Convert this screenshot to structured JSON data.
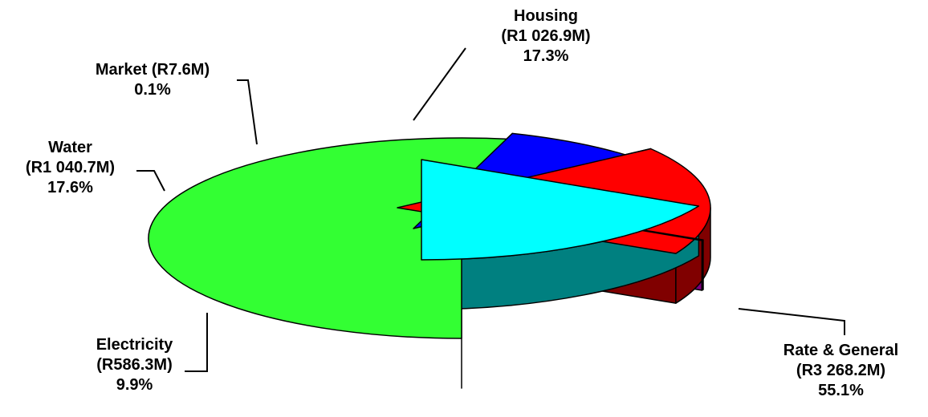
{
  "chart_data": {
    "type": "pie",
    "title": "",
    "slices": [
      {
        "key": "rate",
        "name": "Rate & General",
        "value": 3268.2,
        "value_label": "(R3 268.2M)",
        "percent_label": "55.1%",
        "top": "#33ff33",
        "side": "#009900"
      },
      {
        "key": "electricity",
        "name": "Electricity",
        "value": 586.3,
        "value_label": "(R586.3M)",
        "percent_label": "9.9%",
        "top": "#0000ff",
        "side": "#000080"
      },
      {
        "key": "water",
        "name": "Water",
        "value": 1040.7,
        "value_label": "(R1 040.7M)",
        "percent_label": "17.6%",
        "top": "#ff0000",
        "side": "#800000"
      },
      {
        "key": "market",
        "name": "Market",
        "value": 7.6,
        "value_label": "(R7.6M)",
        "percent_label": "0.1%",
        "top": "#800080",
        "side": "#800080"
      },
      {
        "key": "housing",
        "name": "Housing",
        "value": 1026.9,
        "value_label": "(R1 026.9M)",
        "percent_label": "17.3%",
        "top": "#00ffff",
        "side": "#008080"
      }
    ],
    "market_label": "Market (R7.6M)",
    "legend": "none",
    "style": "3d-exploded"
  }
}
